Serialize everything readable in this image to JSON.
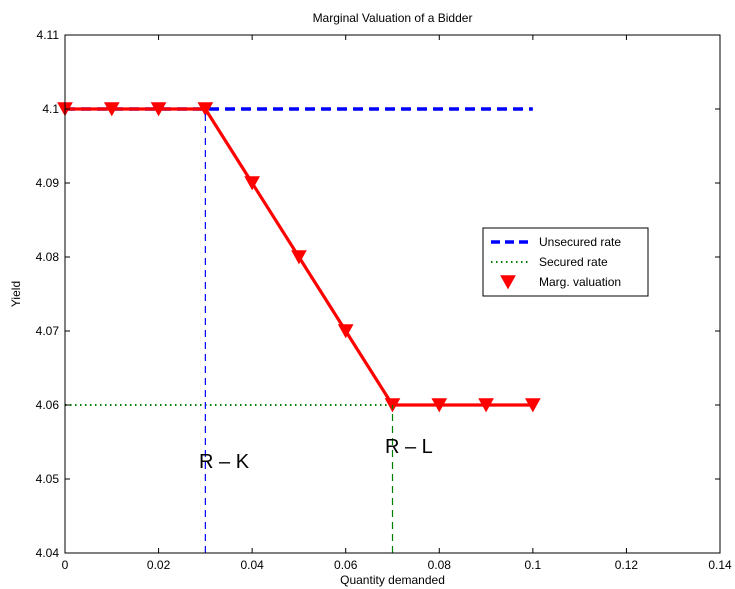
{
  "chart_data": {
    "type": "line",
    "title": "Marginal Valuation of a Bidder",
    "xlabel": "Quantity demanded",
    "ylabel": "Yield",
    "xlim": [
      0,
      0.14
    ],
    "ylim": [
      4.04,
      4.11
    ],
    "x_ticks": [
      "0",
      "0.02",
      "0.04",
      "0.06",
      "0.08",
      "0.1",
      "0.12",
      "0.14"
    ],
    "y_ticks": [
      "4.04",
      "4.05",
      "4.06",
      "4.07",
      "4.08",
      "4.09",
      "4.1",
      "4.11"
    ],
    "grid": false,
    "legend_position": "right",
    "series": [
      {
        "name": "Unsecured rate",
        "style": "dashed",
        "color": "#0000ff",
        "x": [
          0,
          0.1
        ],
        "y": [
          4.1,
          4.1
        ]
      },
      {
        "name": "Secured rate",
        "style": "dotted",
        "color": "#008000",
        "x": [
          0,
          0.07
        ],
        "y": [
          4.06,
          4.06
        ]
      },
      {
        "name": "Marg. valuation",
        "style": "solid-with-down-triangle-markers",
        "color": "#ff0000",
        "x": [
          0,
          0.01,
          0.02,
          0.03,
          0.04,
          0.05,
          0.06,
          0.07,
          0.08,
          0.09,
          0.1
        ],
        "y": [
          4.1,
          4.1,
          4.1,
          4.1,
          4.09,
          4.08,
          4.07,
          4.06,
          4.06,
          4.06,
          4.06
        ]
      }
    ],
    "reference_lines": [
      {
        "x": 0.03,
        "y_from": 4.04,
        "y_to": 4.1,
        "color": "#0000ff",
        "style": "dashed"
      },
      {
        "x": 0.07,
        "y_from": 4.04,
        "y_to": 4.06,
        "color": "#008000",
        "style": "dashed"
      }
    ],
    "annotations": [
      {
        "text": "R – K",
        "x": 0.034,
        "y": 4.0515
      },
      {
        "text": "R – L",
        "x": 0.0735,
        "y": 4.0535
      }
    ]
  }
}
